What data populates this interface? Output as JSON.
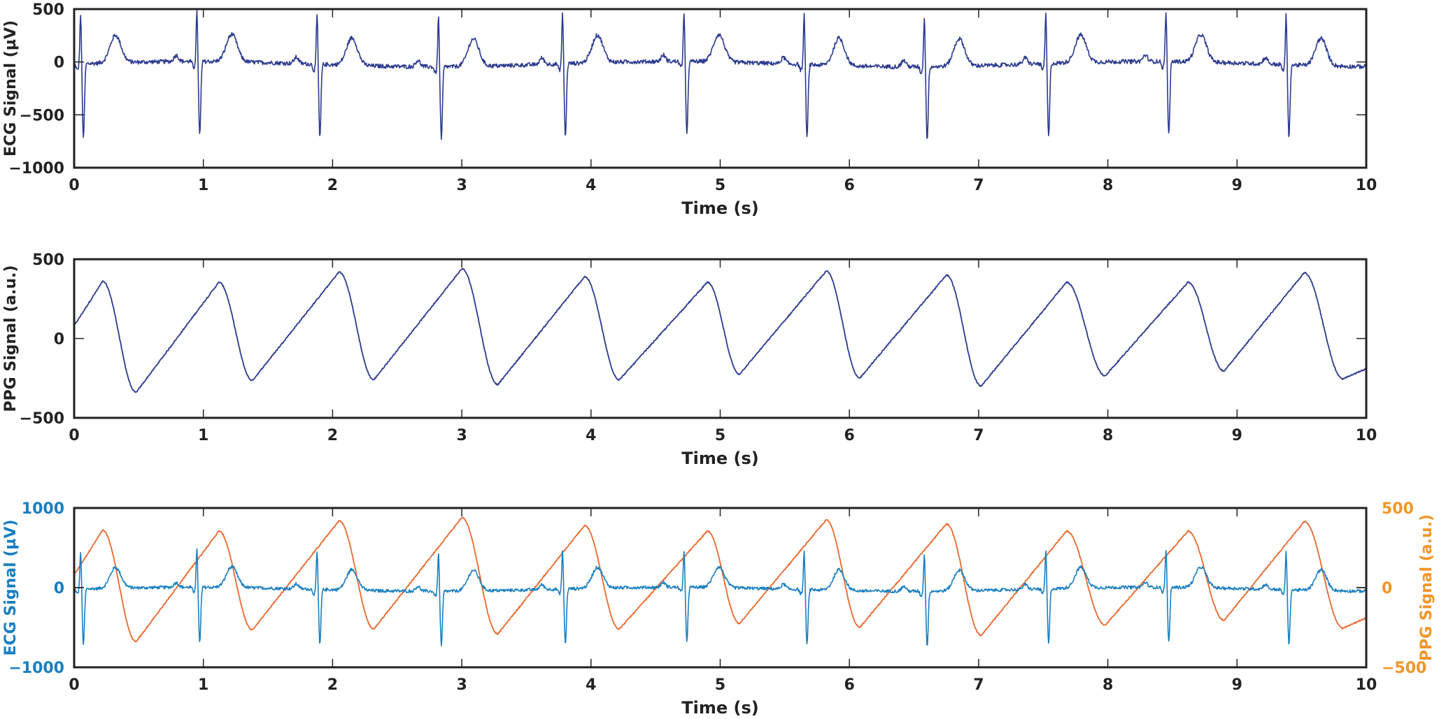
{
  "colors": {
    "ecg_single": "#2b3a8f",
    "ecg_overlay": "#1a7fc0",
    "ppg_overlay": "#e8692d",
    "axis": "#222222",
    "right_axis_text": "#f0962a"
  },
  "chart_data": [
    {
      "type": "line",
      "xlabel": "Time (s)",
      "ylabel": "ECG Signal (µV)",
      "xlim": [
        0,
        10
      ],
      "ylim": [
        -1000,
        500
      ],
      "x_ticks": [
        "0",
        "1",
        "2",
        "3",
        "4",
        "5",
        "6",
        "7",
        "8",
        "9",
        "10"
      ],
      "y_ticks": [
        "500",
        "0",
        "−500",
        "−1000"
      ],
      "grid": false,
      "series": [
        {
          "signal": "ecg",
          "color": "#2b3a8f",
          "r_peak_times": [
            0.05,
            0.95,
            1.88,
            2.82,
            3.78,
            4.72,
            5.65,
            6.58,
            7.52,
            8.45,
            9.38
          ],
          "r_amplitude": 480,
          "s_amplitude": -700,
          "t_amplitude": 260,
          "baseline_range": [
            -70,
            30
          ]
        }
      ]
    },
    {
      "type": "line",
      "xlabel": "Time (s)",
      "ylabel": "PPG Signal (a.u.)",
      "xlim": [
        0,
        10
      ],
      "ylim": [
        -500,
        500
      ],
      "x_ticks": [
        "0",
        "1",
        "2",
        "3",
        "4",
        "5",
        "6",
        "7",
        "8",
        "9",
        "10"
      ],
      "y_ticks": [
        "500",
        "0",
        "−500"
      ],
      "grid": false,
      "series": [
        {
          "signal": "ppg",
          "color": "#2b3a8f",
          "peaks": [
            [
              0.22,
              360
            ],
            [
              1.12,
              355
            ],
            [
              2.05,
              420
            ],
            [
              3.0,
              440
            ],
            [
              3.95,
              390
            ],
            [
              4.9,
              355
            ],
            [
              5.82,
              425
            ],
            [
              6.75,
              400
            ],
            [
              7.68,
              355
            ],
            [
              8.62,
              355
            ],
            [
              9.52,
              415
            ]
          ],
          "troughs": [
            [
              0.0,
              80
            ],
            [
              0.48,
              -340
            ],
            [
              1.38,
              -265
            ],
            [
              2.32,
              -260
            ],
            [
              3.28,
              -290
            ],
            [
              4.22,
              -260
            ],
            [
              5.15,
              -225
            ],
            [
              6.08,
              -250
            ],
            [
              7.02,
              -300
            ],
            [
              7.98,
              -235
            ],
            [
              8.9,
              -205
            ],
            [
              9.82,
              -255
            ],
            [
              10.0,
              -190
            ]
          ]
        }
      ]
    },
    {
      "type": "line",
      "xlabel": "Time (s)",
      "ylabel": "ECG Signal (µV)",
      "ylabel_right": "PPG Signal (a.u.)",
      "xlim": [
        0,
        10
      ],
      "ylim": [
        -1000,
        1000
      ],
      "ylim_right": [
        -500,
        500
      ],
      "x_ticks": [
        "0",
        "1",
        "2",
        "3",
        "4",
        "5",
        "6",
        "7",
        "8",
        "9",
        "10"
      ],
      "y_ticks": [
        "1000",
        "0",
        "−1000"
      ],
      "y_ticks_right": [
        "500",
        "0",
        "−500"
      ],
      "grid": false,
      "series": [
        {
          "signal": "ecg",
          "axis": "left",
          "color": "#1a7fc0"
        },
        {
          "signal": "ppg",
          "axis": "right",
          "color": "#e8692d"
        }
      ]
    }
  ]
}
